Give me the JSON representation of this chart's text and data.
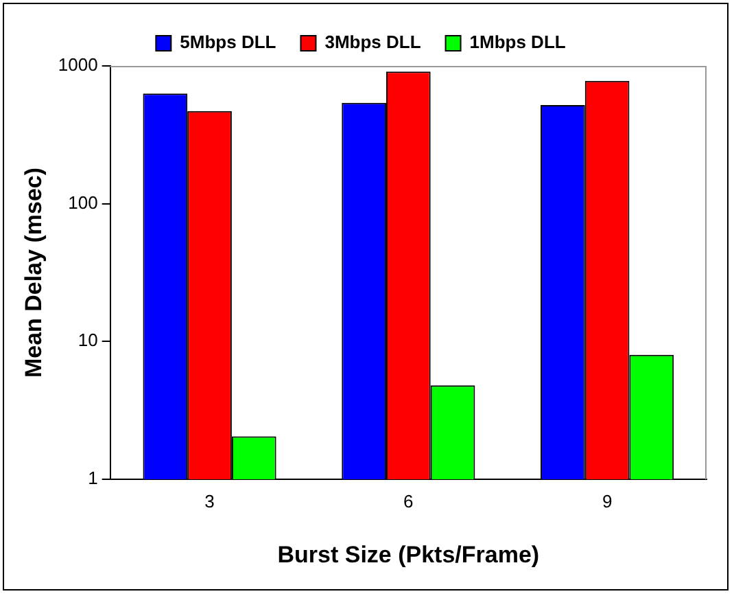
{
  "chart_data": {
    "type": "bar",
    "xlabel": "Burst Size (Pkts/Frame)",
    "ylabel": "Mean Delay (msec)",
    "categories": [
      "3",
      "6",
      "9"
    ],
    "series": [
      {
        "name": "5Mbps DLL",
        "color": "#0000ff",
        "values": [
          630,
          540,
          520
        ]
      },
      {
        "name": "3Mbps DLL",
        "color": "#ff0000",
        "values": [
          470,
          910,
          780
        ]
      },
      {
        "name": "1Mbps DLL",
        "color": "#00ff00",
        "values": [
          2.05,
          4.8,
          8
        ]
      }
    ],
    "log": "y",
    "ylim": [
      1,
      1000
    ],
    "yticks": [
      1,
      10,
      100,
      1000
    ],
    "grid": false,
    "legend": "top"
  }
}
